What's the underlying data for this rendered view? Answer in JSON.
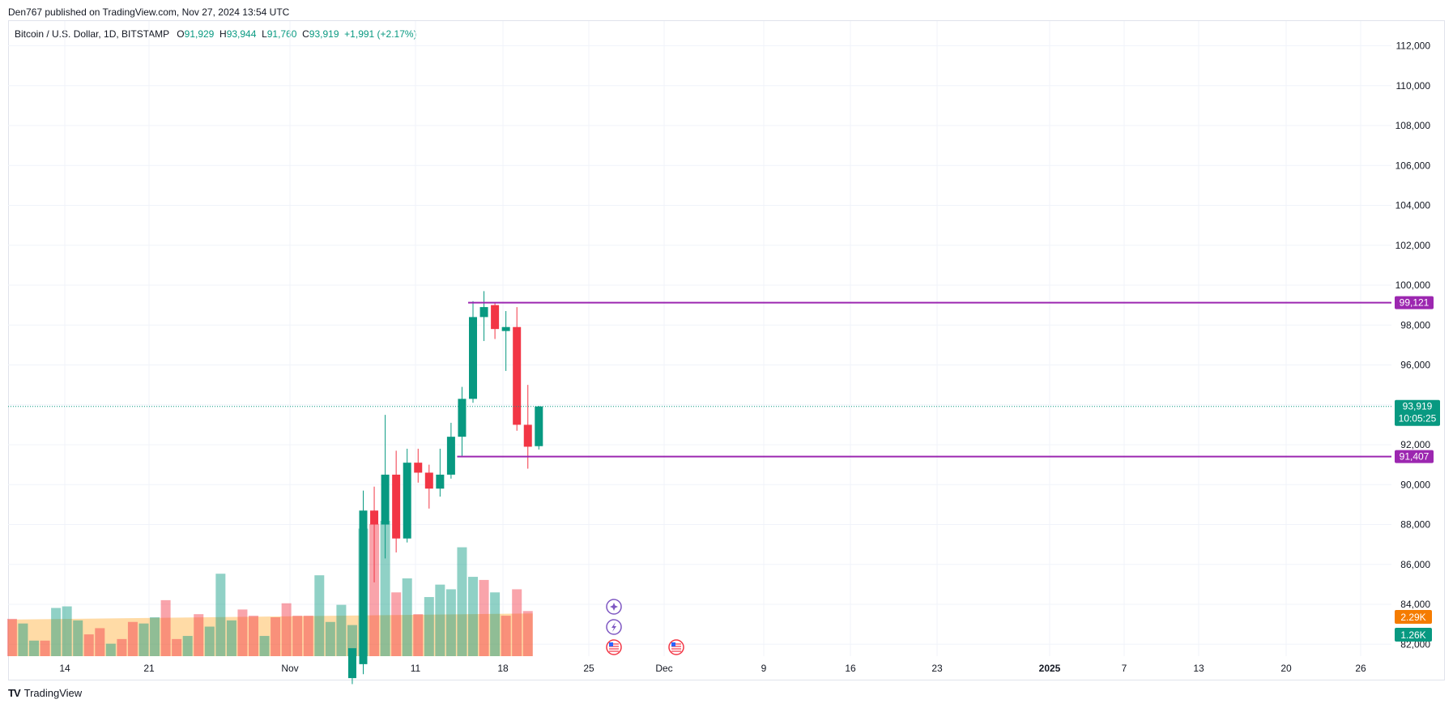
{
  "header": {
    "published": "Den767 published on TradingView.com, Nov 27, 2024 13:54 UTC"
  },
  "legend": {
    "symbol": "Bitcoin / U.S. Dollar, 1D, BITSTAMP",
    "open_label": "O",
    "open": "91,929",
    "high_label": "H",
    "high": "93,944",
    "low_label": "L",
    "low": "91,760",
    "close_label": "C",
    "close": "93,919",
    "change": "+1,991 (+2.17%)"
  },
  "footer": {
    "brand": "TradingView",
    "logo": "TV"
  },
  "colors": {
    "up": "#089981",
    "down": "#f23645",
    "vol_up": "rgba(8,153,129,0.45)",
    "vol_down": "rgba(242,54,69,0.45)",
    "level": "#9c27b0",
    "vol_ma": "rgba(255,152,0,0.35)"
  },
  "chart_data": {
    "type": "candlestick",
    "price_ylim": [
      80500,
      113200
    ],
    "y_ticks": [
      "112,000",
      "110,000",
      "108,000",
      "106,000",
      "104,000",
      "102,000",
      "100,000",
      "98,000",
      "96,000",
      "94,000",
      "92,000",
      "90,000",
      "88,000",
      "86,000",
      "84,000",
      "82,000"
    ],
    "x_ticks": [
      "14",
      "21",
      "Nov",
      "11",
      "18",
      "25",
      "Dec",
      "9",
      "16",
      "23",
      "2025",
      "7",
      "13",
      "20",
      "26"
    ],
    "candles_start": "2024-11-10",
    "candles": [
      {
        "o": 80300,
        "h": 81700,
        "l": 80000,
        "c": 81800
      },
      {
        "o": 81000,
        "h": 89700,
        "l": 80500,
        "c": 88700
      },
      {
        "o": 88700,
        "h": 89900,
        "l": 85100,
        "c": 88000
      },
      {
        "o": 88000,
        "h": 93500,
        "l": 86300,
        "c": 90500
      },
      {
        "o": 90500,
        "h": 91700,
        "l": 86600,
        "c": 87300
      },
      {
        "o": 87300,
        "h": 91800,
        "l": 87100,
        "c": 91100
      },
      {
        "o": 91100,
        "h": 91800,
        "l": 90100,
        "c": 90600
      },
      {
        "o": 90600,
        "h": 91000,
        "l": 88800,
        "c": 89800
      },
      {
        "o": 89800,
        "h": 91800,
        "l": 89400,
        "c": 90500
      },
      {
        "o": 90500,
        "h": 93100,
        "l": 90300,
        "c": 92400
      },
      {
        "o": 92400,
        "h": 94900,
        "l": 91400,
        "c": 94300
      },
      {
        "o": 94300,
        "h": 99200,
        "l": 94100,
        "c": 98400
      },
      {
        "o": 98400,
        "h": 99700,
        "l": 97200,
        "c": 98900
      },
      {
        "o": 99000,
        "h": 99100,
        "l": 97300,
        "c": 97800
      },
      {
        "o": 97700,
        "h": 98700,
        "l": 95700,
        "c": 97900
      },
      {
        "o": 97900,
        "h": 98900,
        "l": 92700,
        "c": 93000
      },
      {
        "o": 93000,
        "h": 95000,
        "l": 90800,
        "c": 91900
      },
      {
        "o": 91929,
        "h": 93944,
        "l": 91760,
        "c": 93919
      }
    ],
    "volume_start": "2024-10-10",
    "volume": [
      {
        "v": 2.4,
        "up": false
      },
      {
        "v": 2.1,
        "up": true
      },
      {
        "v": 1.0,
        "up": true
      },
      {
        "v": 1.0,
        "up": false
      },
      {
        "v": 3.1,
        "up": true
      },
      {
        "v": 3.2,
        "up": true
      },
      {
        "v": 2.3,
        "up": true
      },
      {
        "v": 1.4,
        "up": false
      },
      {
        "v": 1.8,
        "up": false
      },
      {
        "v": 0.8,
        "up": true
      },
      {
        "v": 1.1,
        "up": false
      },
      {
        "v": 2.2,
        "up": false
      },
      {
        "v": 2.1,
        "up": true
      },
      {
        "v": 2.5,
        "up": true
      },
      {
        "v": 3.6,
        "up": false
      },
      {
        "v": 1.1,
        "up": false
      },
      {
        "v": 1.3,
        "up": true
      },
      {
        "v": 2.7,
        "up": false
      },
      {
        "v": 1.9,
        "up": true
      },
      {
        "v": 5.3,
        "up": true
      },
      {
        "v": 2.3,
        "up": true
      },
      {
        "v": 3.0,
        "up": false
      },
      {
        "v": 2.6,
        "up": false
      },
      {
        "v": 1.3,
        "up": true
      },
      {
        "v": 2.5,
        "up": false
      },
      {
        "v": 3.4,
        "up": false
      },
      {
        "v": 2.6,
        "up": false
      },
      {
        "v": 2.6,
        "up": false
      },
      {
        "v": 5.2,
        "up": true
      },
      {
        "v": 2.2,
        "up": true
      },
      {
        "v": 3.3,
        "up": true
      },
      {
        "v": 2.0,
        "up": true
      },
      {
        "v": 8.2,
        "up": true
      },
      {
        "v": 8.5,
        "up": false
      },
      {
        "v": 8.7,
        "up": true
      },
      {
        "v": 4.1,
        "up": false
      },
      {
        "v": 5.0,
        "up": true
      },
      {
        "v": 2.7,
        "up": false
      },
      {
        "v": 3.8,
        "up": true
      },
      {
        "v": 4.6,
        "up": true
      },
      {
        "v": 4.3,
        "up": true
      },
      {
        "v": 7.0,
        "up": true
      },
      {
        "v": 5.1,
        "up": true
      },
      {
        "v": 4.9,
        "up": false
      },
      {
        "v": 4.1,
        "up": true
      },
      {
        "v": 2.6,
        "up": false
      },
      {
        "v": 4.3,
        "up": false
      },
      {
        "v": 2.9,
        "up": false
      }
    ],
    "volume_ma_start": 2.35,
    "volume_ma_end": 2.75,
    "levels": [
      {
        "value": 99121,
        "label": "99,121",
        "from_date": "2024-11-21"
      },
      {
        "value": 91407,
        "label": "91,407",
        "from_date": "2024-11-20"
      }
    ],
    "last_price_label": "93,919",
    "countdown": "10:05:25",
    "volume_labels": [
      {
        "label": "2.29K",
        "color": "#f57c00"
      },
      {
        "label": "1.26K",
        "color": "#089981"
      }
    ],
    "event_icons": [
      "star-icon",
      "lightning-icon",
      "us-flag-icon",
      "us-flag-icon"
    ]
  }
}
